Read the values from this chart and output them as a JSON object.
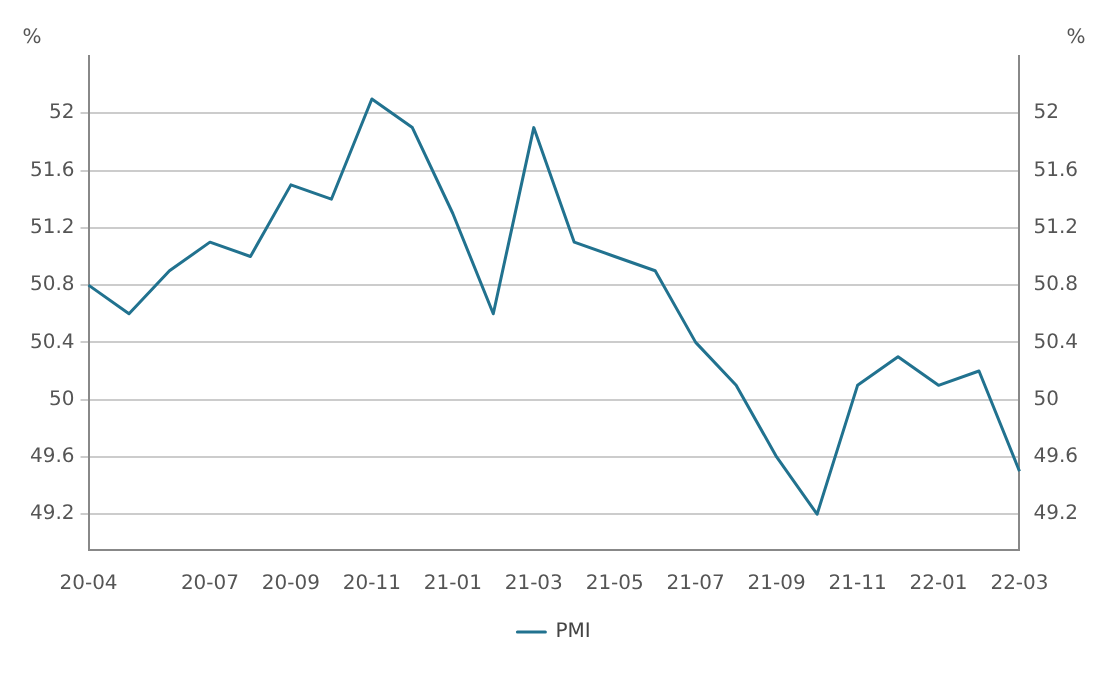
{
  "chart_data": {
    "type": "line",
    "categories": [
      "20-04",
      null,
      null,
      "20-07",
      null,
      "20-09",
      null,
      "20-11",
      null,
      "21-01",
      null,
      "21-03",
      null,
      "21-05",
      null,
      "21-07",
      null,
      "21-09",
      null,
      "21-11",
      null,
      "22-01",
      null,
      "22-03"
    ],
    "series": [
      {
        "name": "PMI",
        "color": "#21728f",
        "values": [
          50.8,
          50.6,
          50.9,
          51.1,
          51.0,
          51.5,
          51.4,
          52.1,
          51.9,
          51.3,
          50.6,
          51.9,
          51.1,
          51.0,
          50.9,
          50.4,
          50.1,
          49.6,
          49.2,
          50.1,
          50.3,
          50.1,
          50.2,
          49.5
        ]
      }
    ],
    "ylabel": "%",
    "y2label": "%",
    "ylim": [
      48.95,
      52.4
    ],
    "yticks": [
      49.2,
      49.6,
      50,
      50.4,
      50.8,
      51.2,
      51.6,
      52
    ],
    "y2lim": [
      48.95,
      52.4
    ],
    "y2ticks": [
      49.2,
      49.6,
      50,
      50.4,
      50.8,
      51.2,
      51.6,
      52
    ],
    "grid": "y",
    "legend": "bottom",
    "marker": "none",
    "line_style": "solid"
  }
}
